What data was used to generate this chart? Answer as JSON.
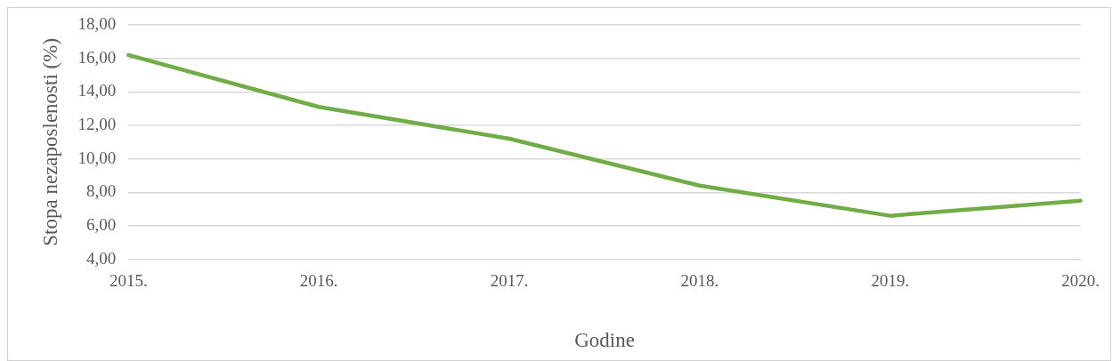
{
  "chart_data": {
    "type": "line",
    "xlabel": "Godine",
    "ylabel": "Stopa nezaposlenosti (%)",
    "categories": [
      "2015.",
      "2016.",
      "2017.",
      "2018.",
      "2019.",
      "2020."
    ],
    "series": [
      {
        "color": "#70ad47",
        "values": [
          16.2,
          13.1,
          11.2,
          8.4,
          6.6,
          7.5
        ]
      }
    ],
    "ylim": [
      4,
      18
    ],
    "yticks": [
      {
        "value": 4,
        "label": "4,00"
      },
      {
        "value": 6,
        "label": "6,00"
      },
      {
        "value": 8,
        "label": "8,00"
      },
      {
        "value": 10,
        "label": "10,00"
      },
      {
        "value": 12,
        "label": "12,00"
      },
      {
        "value": 14,
        "label": "14,00"
      },
      {
        "value": 16,
        "label": "16,00"
      },
      {
        "value": 18,
        "label": "18,00"
      }
    ],
    "grid": "y",
    "legend": false,
    "marker": "none",
    "line_style": "solid"
  }
}
